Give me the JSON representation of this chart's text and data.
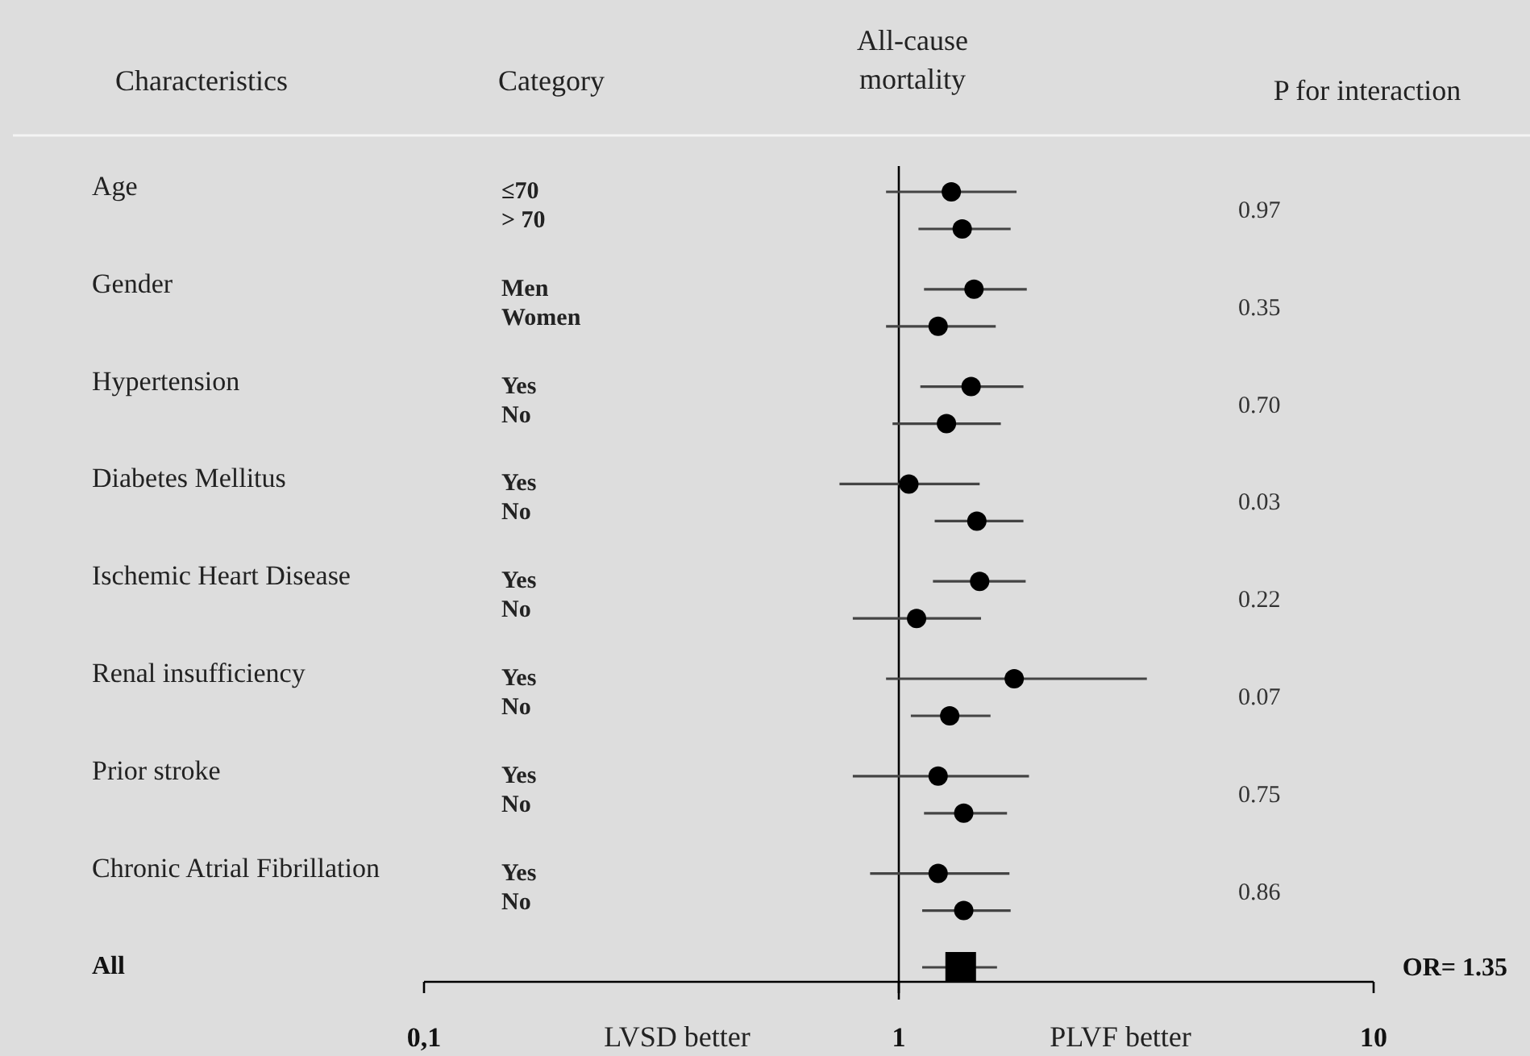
{
  "chart_data": {
    "type": "scatter",
    "orientation": "horizontal",
    "title": "All-cause mortality",
    "categories": [
      "≤70",
      "> 70",
      "Men",
      "Women",
      "Yes",
      "No",
      "Yes",
      "No",
      "Yes",
      "No",
      "Yes",
      "No",
      "Yes",
      "No",
      "Yes",
      "No",
      null
    ],
    "series": [
      {
        "marker": "circle",
        "color": "#000000",
        "values": [
          1.29,
          1.36,
          1.44,
          1.21,
          1.42,
          1.26,
          1.05,
          1.46,
          1.48,
          1.09,
          1.75,
          1.28,
          1.21,
          1.37,
          1.21,
          1.37,
          null
        ],
        "errors": [
          [
            0.94,
            1.77
          ],
          [
            1.1,
            1.72
          ],
          [
            1.13,
            1.86
          ],
          [
            0.94,
            1.6
          ],
          [
            1.11,
            1.83
          ],
          [
            0.97,
            1.64
          ],
          [
            0.75,
            1.48
          ],
          [
            1.19,
            1.83
          ],
          [
            1.18,
            1.85
          ],
          [
            0.8,
            1.49
          ],
          [
            0.94,
            3.33
          ],
          [
            1.06,
            1.56
          ],
          [
            0.8,
            1.88
          ],
          [
            1.13,
            1.69
          ],
          [
            0.87,
            1.71
          ],
          [
            1.12,
            1.72
          ],
          null
        ]
      },
      {
        "marker": "square",
        "color": "#000000",
        "values": [
          null,
          null,
          null,
          null,
          null,
          null,
          null,
          null,
          null,
          null,
          null,
          null,
          null,
          null,
          null,
          null,
          1.35
        ],
        "errors": [
          null,
          null,
          null,
          null,
          null,
          null,
          null,
          null,
          null,
          null,
          null,
          null,
          null,
          null,
          null,
          null,
          [
            1.12,
            1.61
          ]
        ]
      }
    ],
    "log": "x",
    "xlim": [
      0.1,
      10
    ],
    "xticks": [
      {
        "value": 0.1,
        "label": "0,1"
      },
      1,
      10
    ],
    "ref_lines": [
      {
        "axis": "x",
        "value": 1,
        "color": "#000000"
      }
    ],
    "annotations": [
      "Characteristics",
      "Category",
      "P for interaction",
      "Age",
      "Gender",
      "Hypertension",
      "Diabetes Mellitus",
      "Ischemic Heart Disease",
      "Renal insufficiency",
      "Prior stroke",
      "Chronic  Atrial Fibrillation",
      "0.97",
      "0.35",
      "0.70",
      "0.03",
      "0.22",
      "0.07",
      "0.75",
      "0.86",
      "All",
      "OR= 1.35",
      "LVSD better",
      "PLVF better"
    ],
    "grid": false
  }
}
